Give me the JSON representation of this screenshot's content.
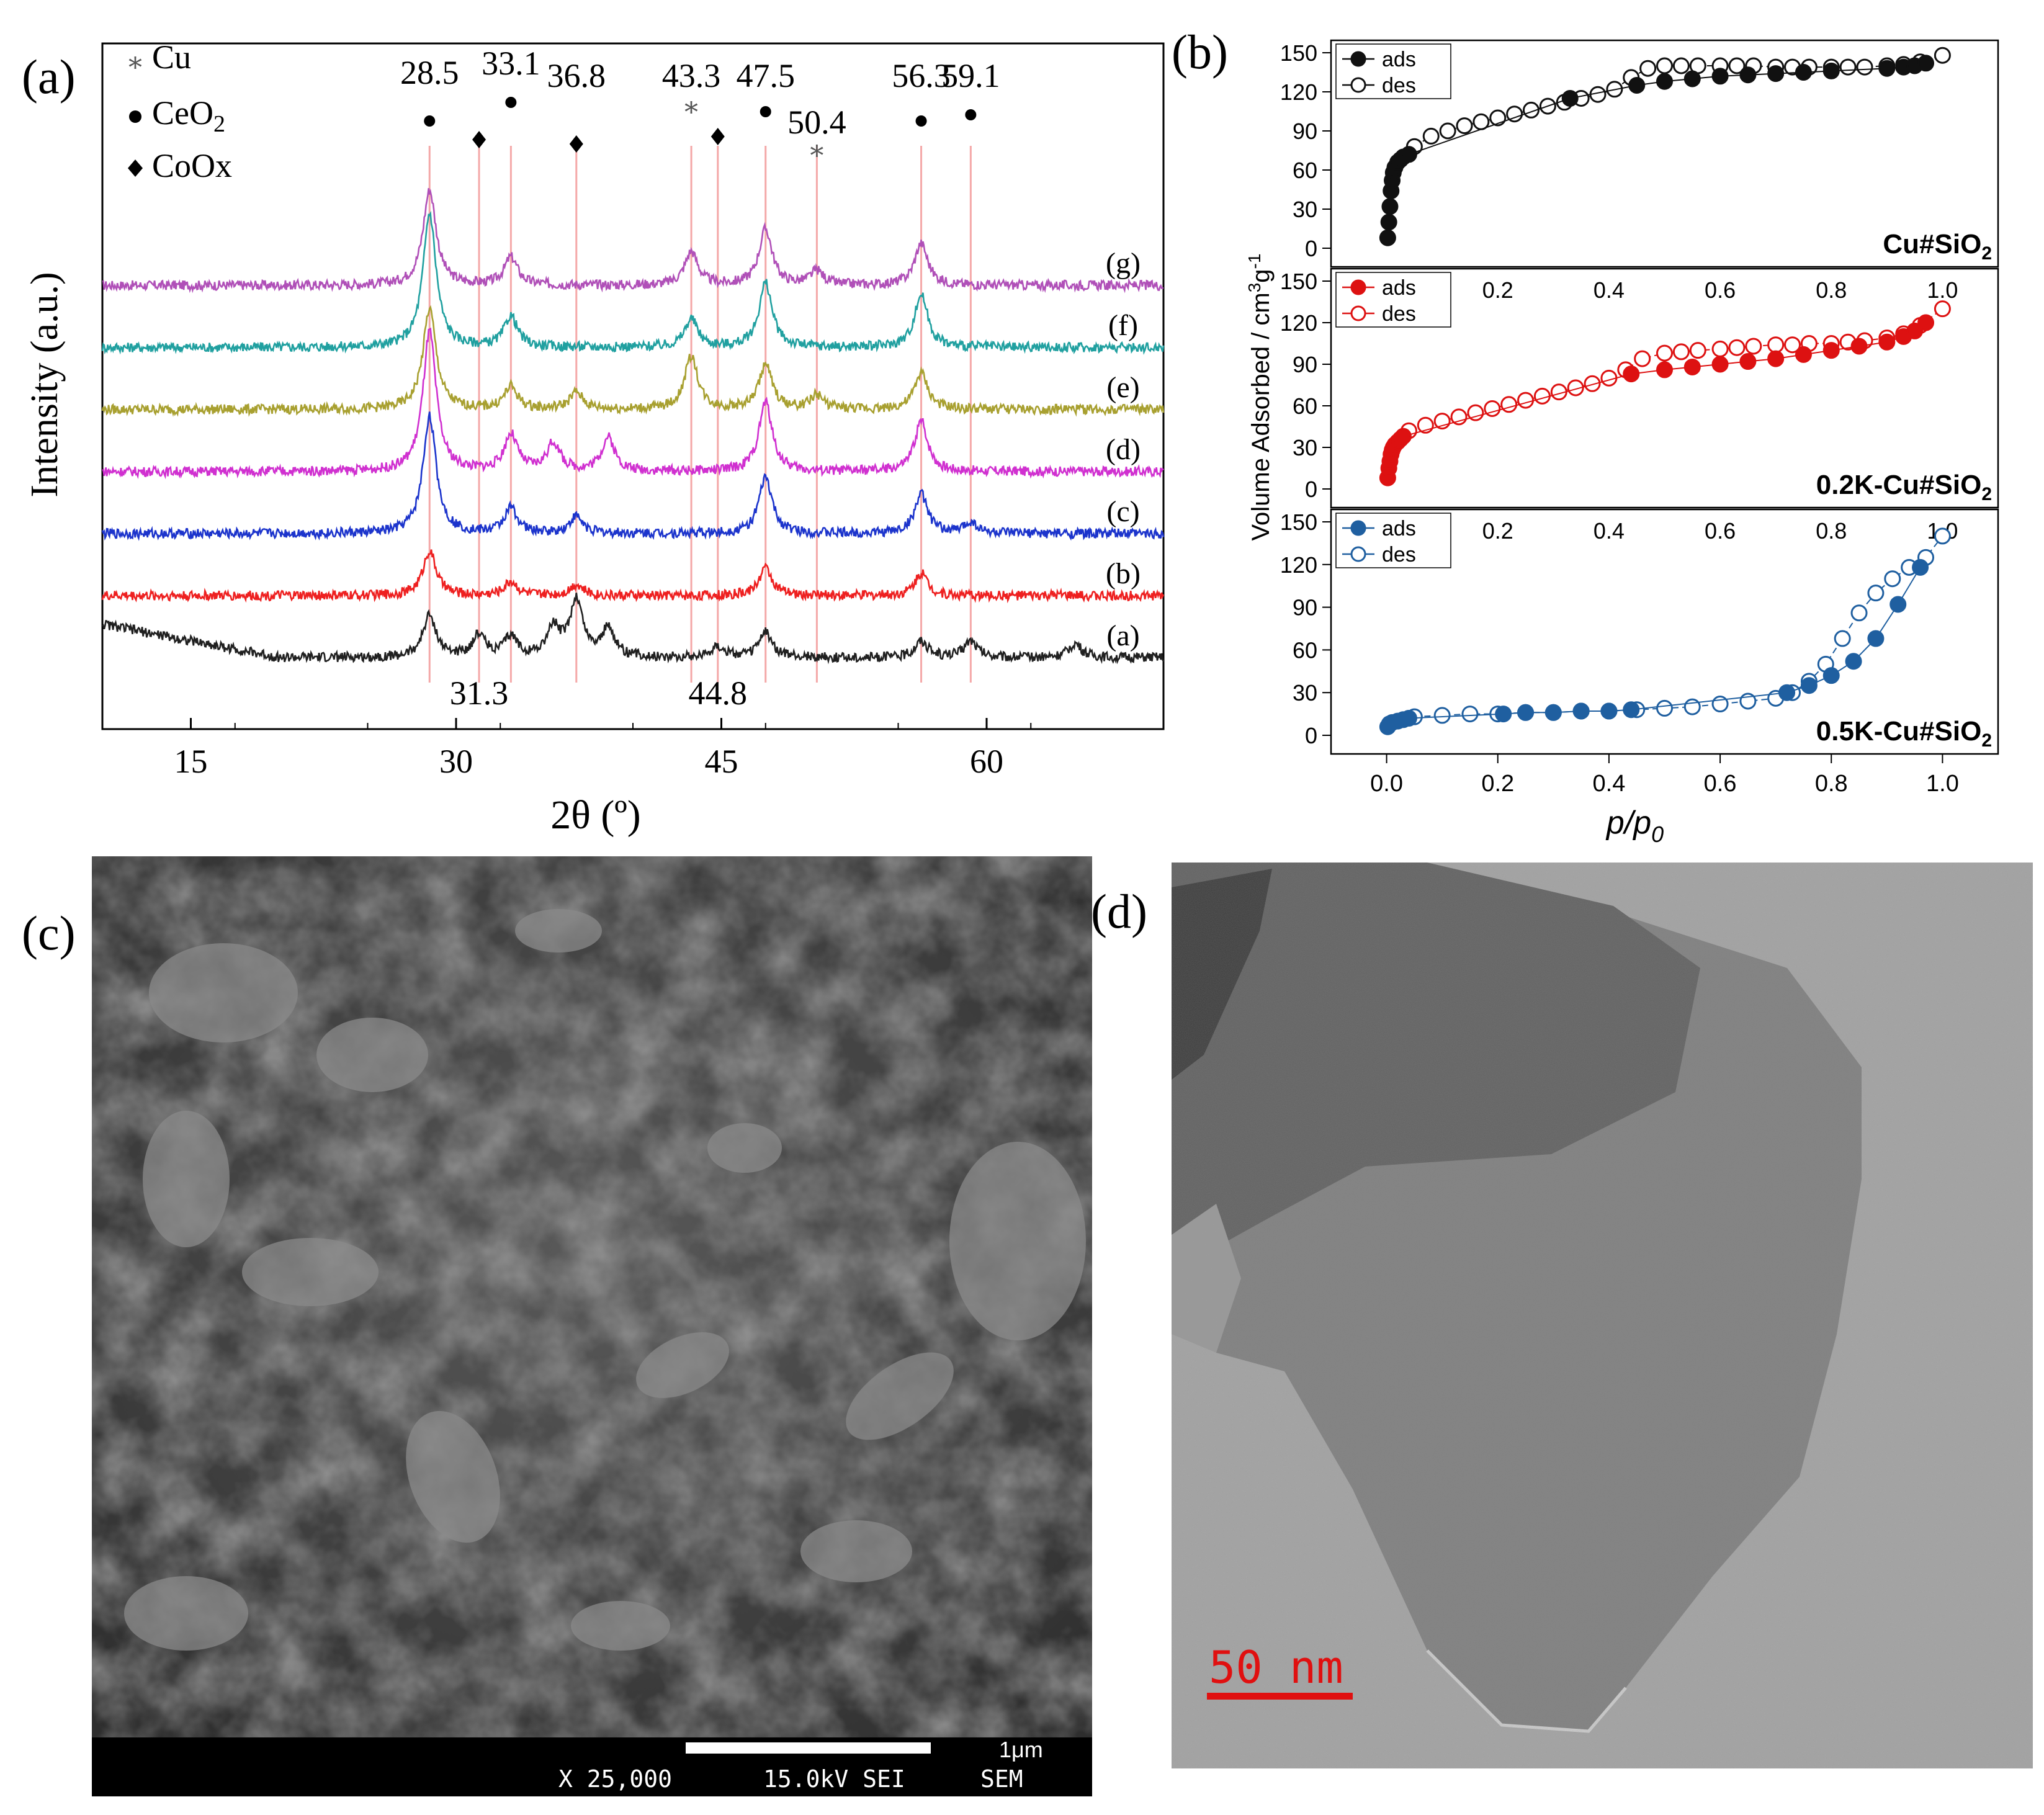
{
  "panel_labels": {
    "a": "(a)",
    "b": "(b)",
    "c": "(c)",
    "d": "(d)"
  },
  "xrd": {
    "legend": [
      {
        "symbol": "*",
        "label": "Cu",
        "shape": "star"
      },
      {
        "symbol": "●",
        "label": "CeO2",
        "label_main": "CeO",
        "label_sub": "2",
        "shape": "dot"
      },
      {
        "symbol": "◆",
        "label": "CoOx",
        "shape": "diamond"
      }
    ],
    "peak_labels_top": [
      {
        "value": "28.5",
        "pos": 28.5,
        "marker": "dot"
      },
      {
        "value": "33.1",
        "pos": 33.1,
        "marker": "dot"
      },
      {
        "value": "36.8",
        "pos": 36.8,
        "marker": "diamond"
      },
      {
        "value": "43.3",
        "pos": 43.3,
        "marker": "star"
      },
      {
        "value": "47.5",
        "pos": 47.5,
        "marker": "dot"
      },
      {
        "value": "50.4",
        "pos": 50.4,
        "marker": "star"
      },
      {
        "value": "56.3",
        "pos": 56.3,
        "marker": "dot"
      },
      {
        "value": "59.1",
        "pos": 59.1,
        "marker": "dot"
      }
    ],
    "peak_labels_bottom": [
      {
        "value": "31.3",
        "pos": 31.3,
        "marker": "diamond"
      },
      {
        "value": "44.8",
        "pos": 44.8,
        "marker": "diamond"
      }
    ],
    "reference_lines": [
      28.5,
      31.3,
      33.1,
      36.8,
      43.3,
      44.8,
      47.5,
      50.4,
      56.3,
      59.1
    ],
    "reference_line_color": "#f4a8a8"
  },
  "chart_data": [
    {
      "type": "line",
      "panel": "a",
      "xlabel": "2θ (º)",
      "ylabel": "Intensity (a.u.)",
      "xlim": [
        10,
        70
      ],
      "xticks": [
        15,
        30,
        45,
        60
      ],
      "series": [
        {
          "name": "(g)",
          "color": "#b050b8",
          "offset": 6,
          "peaks": [
            [
              28.5,
              3.4
            ],
            [
              33.1,
              1.0
            ],
            [
              43.3,
              1.2
            ],
            [
              47.5,
              2.0
            ],
            [
              50.4,
              0.5
            ],
            [
              56.3,
              1.5
            ]
          ]
        },
        {
          "name": "(f)",
          "color": "#20a0a0",
          "offset": 5,
          "peaks": [
            [
              28.5,
              4.8
            ],
            [
              33.1,
              1.1
            ],
            [
              43.3,
              1.0
            ],
            [
              47.5,
              2.3
            ],
            [
              56.3,
              1.9
            ]
          ]
        },
        {
          "name": "(e)",
          "color": "#a8a030",
          "offset": 4,
          "peaks": [
            [
              28.5,
              3.6
            ],
            [
              33.1,
              0.8
            ],
            [
              36.8,
              0.6
            ],
            [
              43.3,
              1.9
            ],
            [
              47.5,
              1.6
            ],
            [
              50.4,
              0.5
            ],
            [
              56.3,
              1.3
            ]
          ]
        },
        {
          "name": "(d)",
          "color": "#d030d0",
          "offset": 3,
          "peaks": [
            [
              28.5,
              5.0
            ],
            [
              33.1,
              1.3
            ],
            [
              35.5,
              1.0
            ],
            [
              38.6,
              1.2
            ],
            [
              47.5,
              2.5
            ],
            [
              56.3,
              1.8
            ]
          ]
        },
        {
          "name": "(c)",
          "color": "#1c34cc",
          "offset": 2,
          "peaks": [
            [
              28.5,
              4.2
            ],
            [
              33.1,
              0.9
            ],
            [
              36.8,
              0.6
            ],
            [
              47.5,
              2.0
            ],
            [
              56.3,
              1.4
            ],
            [
              59.1,
              0.4
            ]
          ]
        },
        {
          "name": "(b)",
          "color": "#ee2020",
          "offset": 1,
          "peaks": [
            [
              28.5,
              1.6
            ],
            [
              33.1,
              0.5
            ],
            [
              36.8,
              0.4
            ],
            [
              47.5,
              1.0
            ],
            [
              56.3,
              0.8
            ]
          ]
        },
        {
          "name": "(a)",
          "color": "#202020",
          "offset": 0,
          "peaks": [
            [
              28.5,
              1.5
            ],
            [
              31.3,
              0.8
            ],
            [
              33.1,
              0.7
            ],
            [
              35.5,
              1.0
            ],
            [
              36.8,
              2.0
            ],
            [
              38.6,
              1.0
            ],
            [
              44.8,
              0.4
            ],
            [
              47.5,
              0.9
            ],
            [
              56.3,
              0.6
            ],
            [
              59.1,
              0.6
            ],
            [
              65.0,
              0.5
            ]
          ]
        }
      ]
    },
    {
      "type": "scatter",
      "panel": "b",
      "xlabel": "p/p0",
      "xlabel_main": "p/p",
      "xlabel_sub": "0",
      "ylabel": "Volume Adsorbed / cm³g⁻¹",
      "ylabel_main": "Volume Adsorbed / cm",
      "ylabel_sup1": "3",
      "ylabel_mid": "g",
      "ylabel_sup2": "-1",
      "xlim": [
        -0.1,
        1.1
      ],
      "xticks": [
        0.0,
        0.2,
        0.4,
        0.6,
        0.8,
        1.0
      ],
      "inner_xticks": [
        "0.2",
        "0.4",
        "0.6",
        "0.8",
        "1.0"
      ],
      "ylim": [
        0,
        160
      ],
      "yticks": [
        0,
        30,
        60,
        90,
        120,
        150
      ],
      "subplots": [
        {
          "name": "Cu#SiO2",
          "label_main": "Cu#SiO",
          "label_sub": "2",
          "color": "#111111",
          "legend": [
            "ads",
            "des"
          ],
          "ads": {
            "x": [
              0.002,
              0.004,
              0.006,
              0.008,
              0.01,
              0.012,
              0.015,
              0.02,
              0.025,
              0.03,
              0.04,
              0.33,
              0.45,
              0.5,
              0.55,
              0.6,
              0.65,
              0.7,
              0.75,
              0.8,
              0.9,
              0.93,
              0.95,
              0.97
            ],
            "y": [
              8,
              20,
              32,
              44,
              52,
              58,
              62,
              66,
              68,
              70,
              72,
              115,
              125,
              128,
              130,
              132,
              133,
              134,
              135,
              136,
              138,
              139,
              140,
              142
            ]
          },
          "des": {
            "x": [
              0.05,
              0.08,
              0.11,
              0.14,
              0.17,
              0.2,
              0.23,
              0.26,
              0.29,
              0.32,
              0.35,
              0.38,
              0.41,
              0.44,
              0.47,
              0.5,
              0.53,
              0.56,
              0.6,
              0.63,
              0.66,
              0.7,
              0.73,
              0.76,
              0.8,
              0.83,
              0.86,
              0.9,
              0.93,
              0.96,
              1.0
            ],
            "y": [
              78,
              86,
              90,
              94,
              97,
              100,
              103,
              106,
              109,
              112,
              115,
              118,
              122,
              131,
              138,
              140,
              140,
              140,
              140,
              140,
              140,
              139,
              139,
              139,
              139,
              139,
              139,
              140,
              141,
              143,
              148
            ]
          }
        },
        {
          "name": "0.2K-Cu#SiO2",
          "label_main": "0.2K-Cu#SiO",
          "label_sub": "2",
          "color": "#dd1111",
          "legend": [
            "ads",
            "des"
          ],
          "ads": {
            "x": [
              0.002,
              0.004,
              0.006,
              0.008,
              0.01,
              0.012,
              0.015,
              0.02,
              0.025,
              0.03,
              0.44,
              0.5,
              0.55,
              0.6,
              0.65,
              0.7,
              0.75,
              0.8,
              0.85,
              0.9,
              0.93,
              0.95,
              0.97
            ],
            "y": [
              8,
              15,
              20,
              25,
              28,
              30,
              32,
              34,
              36,
              38,
              83,
              86,
              88,
              90,
              92,
              94,
              97,
              100,
              103,
              106,
              110,
              114,
              120
            ]
          },
          "des": {
            "x": [
              0.04,
              0.07,
              0.1,
              0.13,
              0.16,
              0.19,
              0.22,
              0.25,
              0.28,
              0.31,
              0.34,
              0.37,
              0.4,
              0.43,
              0.46,
              0.5,
              0.53,
              0.56,
              0.6,
              0.63,
              0.66,
              0.7,
              0.73,
              0.76,
              0.8,
              0.83,
              0.86,
              0.9,
              0.93,
              0.96,
              1.0
            ],
            "y": [
              42,
              46,
              49,
              52,
              55,
              58,
              61,
              64,
              67,
              70,
              73,
              76,
              80,
              86,
              94,
              98,
              99,
              100,
              101,
              102,
              103,
              104,
              104,
              105,
              105,
              106,
              107,
              109,
              112,
              118,
              130
            ]
          }
        },
        {
          "name": "0.5K-Cu#SiO2",
          "label_main": "0.5K-Cu#SiO",
          "label_sub": "2",
          "color": "#1f5fa0",
          "legend": [
            "ads",
            "des"
          ],
          "ads": {
            "x": [
              0.002,
              0.005,
              0.01,
              0.02,
              0.03,
              0.04,
              0.21,
              0.25,
              0.3,
              0.35,
              0.4,
              0.44,
              0.72,
              0.76,
              0.8,
              0.84,
              0.88,
              0.92,
              0.96
            ],
            "y": [
              6,
              8,
              9,
              10,
              11,
              12,
              15,
              16,
              16,
              17,
              17,
              18,
              30,
              35,
              42,
              52,
              68,
              92,
              118
            ]
          },
          "des": {
            "x": [
              0.05,
              0.1,
              0.15,
              0.2,
              0.25,
              0.3,
              0.35,
              0.4,
              0.45,
              0.5,
              0.55,
              0.6,
              0.65,
              0.7,
              0.73,
              0.76,
              0.79,
              0.82,
              0.85,
              0.88,
              0.91,
              0.94,
              0.97,
              1.0
            ],
            "y": [
              13,
              14,
              15,
              15,
              16,
              16,
              17,
              17,
              18,
              19,
              20,
              22,
              24,
              26,
              30,
              38,
              50,
              68,
              86,
              100,
              110,
              118,
              125,
              140
            ]
          }
        }
      ]
    }
  ],
  "sem": {
    "scale_label": "1μm",
    "footer": [
      "X 25,000",
      "15.0kV SEI",
      "SEM"
    ]
  },
  "tem": {
    "scale_label": "50 nm"
  }
}
